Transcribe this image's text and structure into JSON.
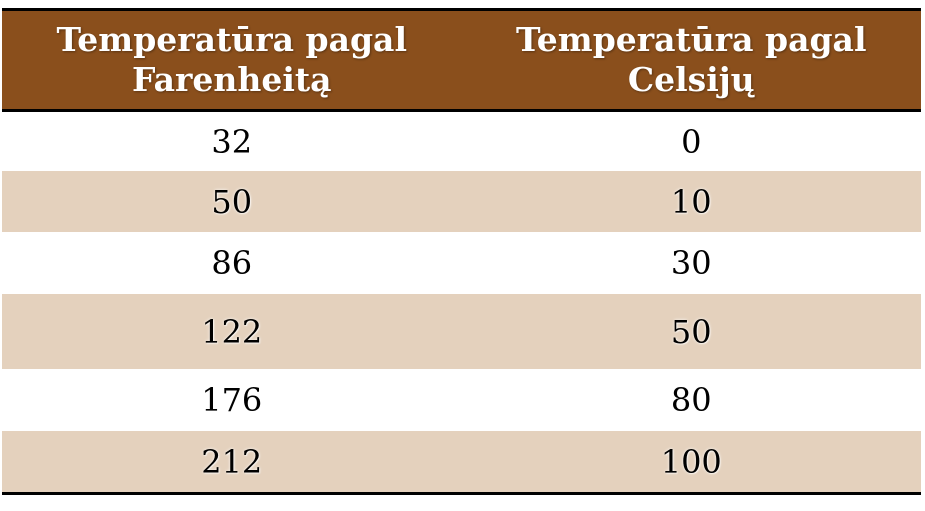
{
  "table": {
    "headers": [
      "Temperatūra pagal\nFarenheitą",
      "Temperatūra pagal\nCelsijų"
    ],
    "rows": [
      [
        "32",
        "0"
      ],
      [
        "50",
        "10"
      ],
      [
        "86",
        "30"
      ],
      [
        "122",
        "50"
      ],
      [
        "176",
        "80"
      ],
      [
        "212",
        "100"
      ]
    ]
  },
  "colors": {
    "header_background": "#8a4f1c",
    "banded_row_background": "#e4d1bd",
    "rule": "#000000"
  }
}
